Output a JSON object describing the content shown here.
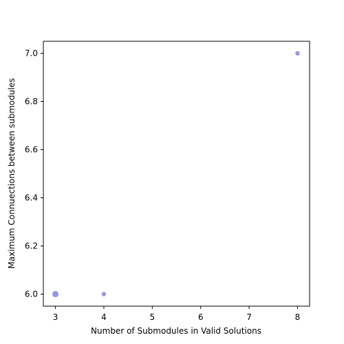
{
  "chart_data": {
    "type": "scatter",
    "title": "",
    "xlabel": "Number of Submodules in Valid Solutions",
    "ylabel": "Maximum Connuections between submodules",
    "xlim": [
      2.75,
      8.25
    ],
    "ylim": [
      5.95,
      7.05
    ],
    "x_ticks": [
      "3",
      "4",
      "5",
      "6",
      "7",
      "8"
    ],
    "y_ticks": [
      "6.0",
      "6.2",
      "6.4",
      "6.6",
      "6.8",
      "7.0"
    ],
    "grid": false,
    "marker_color": "#8b8be6",
    "points": [
      {
        "x": 3,
        "y": 6.0,
        "size": 2
      },
      {
        "x": 4,
        "y": 6.0,
        "size": 1
      },
      {
        "x": 8,
        "y": 7.0,
        "size": 1
      }
    ]
  }
}
